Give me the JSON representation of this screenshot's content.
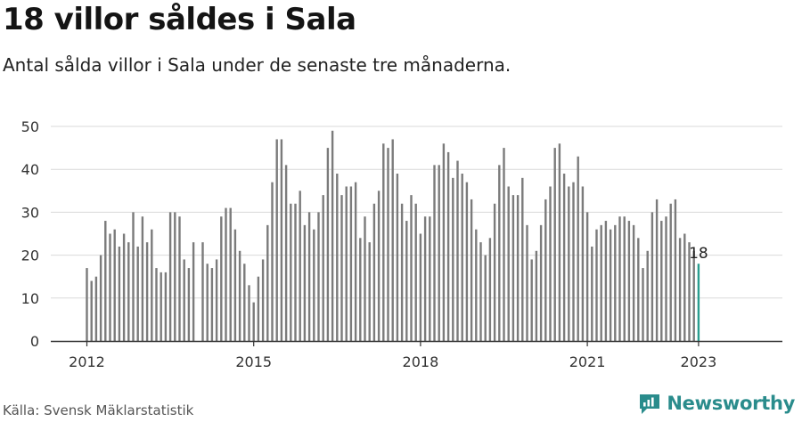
{
  "header": {
    "title": "18 villor såldes i Sala",
    "subtitle": "Antal sålda villor i Sala under de senaste tre månaderna."
  },
  "footer": {
    "source": "Källa: Svensk Mäklarstatistik",
    "brand": "Newsworthy"
  },
  "colors": {
    "bar": "#7b7b7b",
    "highlight": "#2a9d8f",
    "grid": "#d9d9d9",
    "axis": "#333333",
    "brand": "#2a8c8c"
  },
  "chart_data": {
    "type": "bar",
    "title": "18 villor såldes i Sala",
    "ylim": [
      0,
      50
    ],
    "yticks": [
      0,
      10,
      20,
      30,
      40,
      50
    ],
    "xtick_labels": [
      "2012",
      "2015",
      "2018",
      "2021",
      "2023"
    ],
    "grid": true,
    "start": "2012-01",
    "end": "2023-01",
    "values": [
      17,
      14,
      15,
      20,
      28,
      25,
      26,
      22,
      25,
      23,
      30,
      22,
      29,
      23,
      26,
      17,
      16,
      16,
      30,
      30,
      29,
      19,
      17,
      23,
      null,
      23,
      18,
      17,
      19,
      29,
      31,
      31,
      26,
      21,
      18,
      13,
      9,
      15,
      19,
      27,
      37,
      47,
      47,
      41,
      32,
      32,
      35,
      27,
      30,
      26,
      30,
      34,
      45,
      49,
      39,
      34,
      36,
      36,
      37,
      24,
      29,
      23,
      32,
      35,
      46,
      45,
      47,
      39,
      32,
      28,
      34,
      32,
      25,
      29,
      29,
      41,
      41,
      46,
      44,
      38,
      42,
      39,
      37,
      33,
      26,
      23,
      20,
      24,
      32,
      41,
      45,
      36,
      34,
      34,
      38,
      27,
      19,
      21,
      27,
      33,
      36,
      45,
      46,
      39,
      36,
      37,
      43,
      36,
      30,
      22,
      26,
      27,
      28,
      26,
      27,
      29,
      29,
      28,
      27,
      24,
      17,
      21,
      30,
      33,
      28,
      29,
      32,
      33,
      24,
      25,
      23,
      21,
      18
    ],
    "highlight": {
      "label": "18",
      "value": 18
    }
  }
}
